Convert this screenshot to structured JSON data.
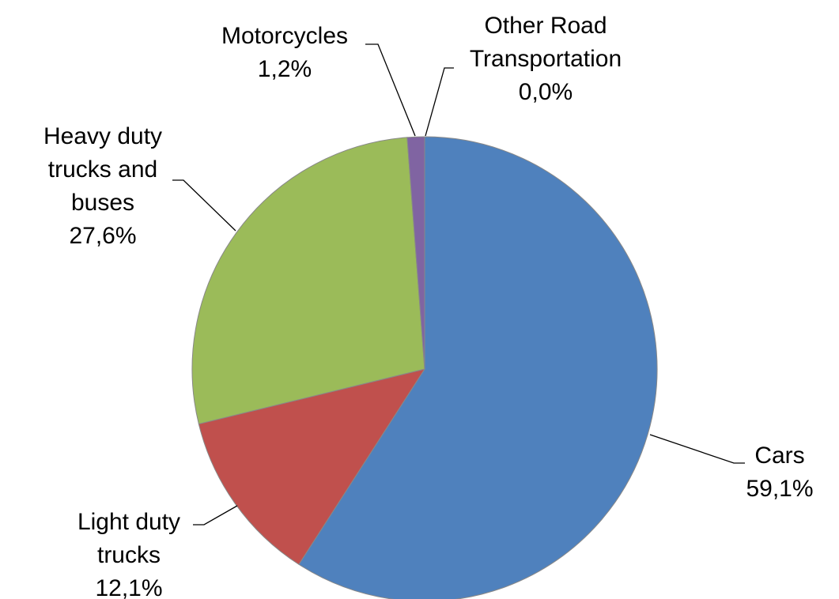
{
  "chart_data": {
    "type": "pie",
    "categories": [
      "Cars",
      "Light duty trucks",
      "Heavy duty trucks and buses",
      "Motorcycles",
      "Other Road Transportation"
    ],
    "values": [
      59.1,
      12.1,
      27.6,
      1.2,
      0.0
    ],
    "value_labels": [
      "59,1%",
      "12,1%",
      "27,6%",
      "1,2%",
      "0,0%"
    ],
    "colors": [
      "#4f81bd",
      "#c0504d",
      "#9bbb59",
      "#8064a2",
      "#4bacc6"
    ]
  }
}
